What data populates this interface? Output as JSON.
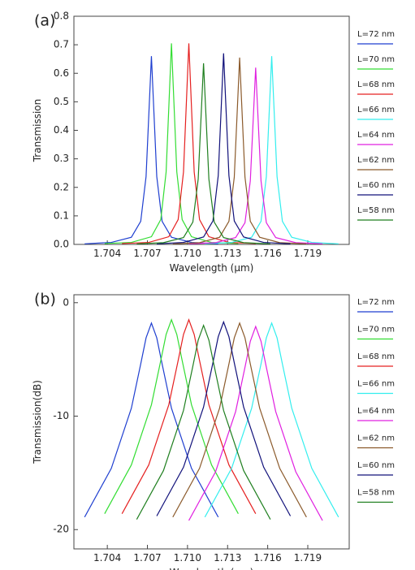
{
  "chart_data": [
    {
      "type": "line",
      "panel_label": "(a)",
      "x_label": "Wavelength (μm)",
      "y_label": "Transmission",
      "xlim": [
        1.7015,
        1.7221
      ],
      "xticks": [
        1.704,
        1.707,
        {
          "value": 1.71,
          "label": "1.710"
        },
        1.713,
        1.716,
        1.719
      ],
      "ylim": [
        0,
        0.8
      ],
      "yticks": [
        {
          "value": 0,
          "label": "0.0"
        },
        0.1,
        0.2,
        0.3,
        0.4,
        0.5,
        0.6,
        0.7,
        0.8
      ],
      "series": [
        {
          "name": "L=72 nm",
          "color": "#1f3fd0",
          "x": [
            1.7023,
            1.7043,
            1.7058,
            1.7065,
            1.7069,
            1.7073,
            1.7077,
            1.7081,
            1.7088,
            1.7103,
            1.7123
          ],
          "values": [
            0.002,
            0.007,
            0.025,
            0.081,
            0.238,
            0.66,
            0.238,
            0.081,
            0.025,
            0.007,
            0.002
          ]
        },
        {
          "name": "L=70 nm",
          "color": "#33dd33",
          "x": [
            1.7038,
            1.7058,
            1.7073,
            1.708,
            1.7084,
            1.7088,
            1.7092,
            1.7096,
            1.7103,
            1.7118,
            1.7138
          ],
          "values": [
            0.003,
            0.007,
            0.027,
            0.087,
            0.254,
            0.705,
            0.254,
            0.087,
            0.027,
            0.007,
            0.003
          ]
        },
        {
          "name": "L=68 nm",
          "color": "#e52020",
          "x": [
            1.7051,
            1.7071,
            1.7086,
            1.7093,
            1.7097,
            1.7101,
            1.7105,
            1.7109,
            1.7116,
            1.7131,
            1.7151
          ],
          "values": [
            0.003,
            0.007,
            0.027,
            0.087,
            0.254,
            0.705,
            0.254,
            0.087,
            0.027,
            0.007,
            0.003
          ]
        },
        {
          "name": "L=66 nm",
          "color": "#33eeee",
          "x": [
            1.7113,
            1.7133,
            1.7148,
            1.7155,
            1.7159,
            1.7163,
            1.7167,
            1.7171,
            1.7178,
            1.7193,
            1.7213
          ],
          "values": [
            0.002,
            0.007,
            0.025,
            0.081,
            0.238,
            0.66,
            0.238,
            0.081,
            0.025,
            0.007,
            0.002
          ]
        },
        {
          "name": "L=64 nm",
          "color": "#e020e0",
          "x": [
            1.7101,
            1.7121,
            1.7136,
            1.7143,
            1.7147,
            1.7151,
            1.7155,
            1.7159,
            1.7166,
            1.7181,
            1.7201
          ],
          "values": [
            0.002,
            0.006,
            0.024,
            0.076,
            0.223,
            0.62,
            0.223,
            0.076,
            0.024,
            0.006,
            0.002
          ]
        },
        {
          "name": "L=62 nm",
          "color": "#8b5a2b",
          "x": [
            1.7089,
            1.7109,
            1.7124,
            1.7131,
            1.7135,
            1.7139,
            1.7143,
            1.7147,
            1.7154,
            1.7169,
            1.7189
          ],
          "values": [
            0.002,
            0.006,
            0.025,
            0.081,
            0.236,
            0.655,
            0.236,
            0.081,
            0.025,
            0.006,
            0.002
          ]
        },
        {
          "name": "L=60 nm",
          "color": "#10107a",
          "x": [
            1.7077,
            1.7097,
            1.7112,
            1.7119,
            1.7123,
            1.7127,
            1.7131,
            1.7135,
            1.7142,
            1.7157,
            1.7177
          ],
          "values": [
            0.002,
            0.007,
            0.026,
            0.082,
            0.241,
            0.67,
            0.241,
            0.082,
            0.026,
            0.007,
            0.002
          ]
        },
        {
          "name": "L=58 nm",
          "color": "#1f7f1f",
          "x": [
            1.7062,
            1.7082,
            1.7097,
            1.7104,
            1.7108,
            1.7112,
            1.7116,
            1.712,
            1.7127,
            1.7142,
            1.7162
          ],
          "values": [
            0.002,
            0.006,
            0.024,
            0.078,
            0.229,
            0.635,
            0.229,
            0.078,
            0.024,
            0.006,
            0.002
          ]
        }
      ]
    },
    {
      "type": "line",
      "panel_label": "(b)",
      "x_label": "Wavelength (μm)",
      "y_label": "Transmission(dB)",
      "xlim": [
        1.7015,
        1.7221
      ],
      "xticks": [
        1.704,
        1.707,
        {
          "value": 1.71,
          "label": "1.710"
        },
        1.713,
        1.716,
        1.719
      ],
      "ylim": [
        -21.7,
        0.7
      ],
      "yticks": [
        -20,
        -10,
        0
      ],
      "series": [
        {
          "name": "L=72 nm",
          "color": "#1f3fd0",
          "x": [
            1.7023,
            1.7043,
            1.7058,
            1.7065,
            1.7069,
            1.7073,
            1.7077,
            1.7081,
            1.7088,
            1.7103,
            1.7123
          ],
          "values": [
            -18.9,
            -14.6,
            -9.3,
            -5.4,
            -3.1,
            -1.8,
            -3.1,
            -5.4,
            -9.3,
            -14.6,
            -18.9
          ]
        },
        {
          "name": "L=70 nm",
          "color": "#33dd33",
          "x": [
            1.7038,
            1.7058,
            1.7073,
            1.708,
            1.7084,
            1.7088,
            1.7092,
            1.7096,
            1.7103,
            1.7118,
            1.7138
          ],
          "values": [
            -18.6,
            -14.3,
            -9,
            -5.1,
            -2.8,
            -1.5,
            -2.8,
            -5.1,
            -9,
            -14.3,
            -18.6
          ]
        },
        {
          "name": "L=68 nm",
          "color": "#e52020",
          "x": [
            1.7051,
            1.7071,
            1.7086,
            1.7093,
            1.7097,
            1.7101,
            1.7105,
            1.7109,
            1.7116,
            1.7131,
            1.7151
          ],
          "values": [
            -18.6,
            -14.3,
            -9,
            -5.1,
            -2.8,
            -1.5,
            -2.8,
            -5.1,
            -9,
            -14.3,
            -18.6
          ]
        },
        {
          "name": "L=66 nm",
          "color": "#33eeee",
          "x": [
            1.7113,
            1.7133,
            1.7148,
            1.7155,
            1.7159,
            1.7163,
            1.7167,
            1.7171,
            1.7178,
            1.7193,
            1.7213
          ],
          "values": [
            -18.9,
            -14.6,
            -9.3,
            -5.4,
            -3.1,
            -1.8,
            -3.1,
            -5.4,
            -9.3,
            -14.6,
            -18.9
          ]
        },
        {
          "name": "L=64 nm",
          "color": "#e020e0",
          "x": [
            1.7101,
            1.7121,
            1.7136,
            1.7143,
            1.7147,
            1.7151,
            1.7155,
            1.7159,
            1.7166,
            1.7181,
            1.7201
          ],
          "values": [
            -19.2,
            -14.9,
            -9.6,
            -5.7,
            -3.4,
            -2.1,
            -3.4,
            -5.7,
            -9.6,
            -14.9,
            -19.2
          ]
        },
        {
          "name": "L=62 nm",
          "color": "#8b5a2b",
          "x": [
            1.7089,
            1.7109,
            1.7124,
            1.7131,
            1.7135,
            1.7139,
            1.7143,
            1.7147,
            1.7154,
            1.7169,
            1.7189
          ],
          "values": [
            -18.9,
            -14.6,
            -9.3,
            -5.4,
            -3.1,
            -1.8,
            -3.1,
            -5.4,
            -9.3,
            -14.6,
            -18.9
          ]
        },
        {
          "name": "L=60 nm",
          "color": "#10107a",
          "x": [
            1.7077,
            1.7097,
            1.7112,
            1.7119,
            1.7123,
            1.7127,
            1.7131,
            1.7135,
            1.7142,
            1.7157,
            1.7177
          ],
          "values": [
            -18.8,
            -14.5,
            -9.2,
            -5.3,
            -3,
            -1.7,
            -3,
            -5.3,
            -9.2,
            -14.5,
            -18.8
          ]
        },
        {
          "name": "L=58 nm",
          "color": "#1f7f1f",
          "x": [
            1.7062,
            1.7082,
            1.7097,
            1.7104,
            1.7108,
            1.7112,
            1.7116,
            1.712,
            1.7127,
            1.7142,
            1.7162
          ],
          "values": [
            -19.1,
            -14.8,
            -9.5,
            -5.6,
            -3.3,
            -2,
            -3.3,
            -5.6,
            -9.5,
            -14.8,
            -19.1
          ]
        }
      ]
    }
  ]
}
